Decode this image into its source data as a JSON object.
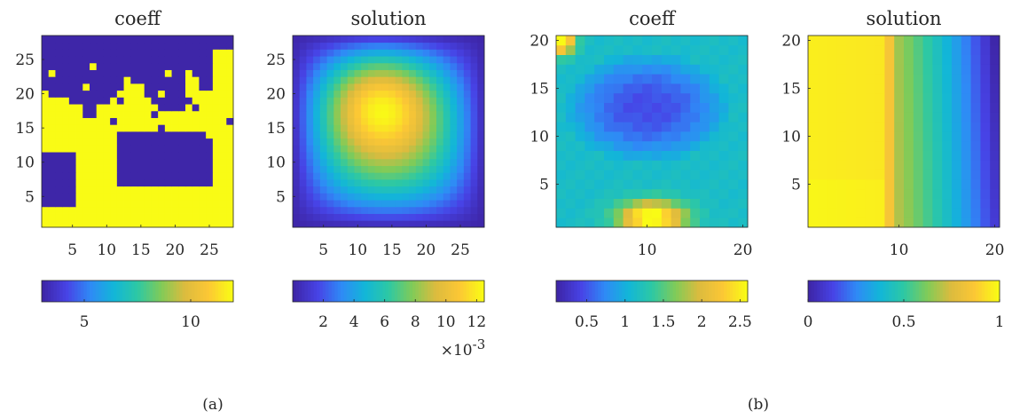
{
  "colormap": "parula",
  "colormap_stops": [
    "#3e26a8",
    "#4743e6",
    "#2f8af6",
    "#12b6d8",
    "#2dc8a4",
    "#80cb58",
    "#dcbb3e",
    "#fcc735",
    "#f9fb15"
  ],
  "chart_data": [
    {
      "type": "heatmap",
      "panel": "a",
      "title": "coeff",
      "grid": [
        28,
        28
      ],
      "xlim": [
        0.5,
        28.5
      ],
      "ylim": [
        0.5,
        28.5
      ],
      "xticks": [
        "5",
        "10",
        "15",
        "20",
        "25"
      ],
      "yticks": [
        "5",
        "10",
        "15",
        "20",
        "25"
      ],
      "values": "binary field, 3 (blue) or 12 (yellow)",
      "value_levels": [
        3,
        12
      ],
      "colorbar": {
        "range": [
          3,
          12
        ],
        "ticks": [
          "5",
          "10"
        ]
      }
    },
    {
      "type": "heatmap",
      "panel": "a",
      "title": "solution",
      "grid": [
        28,
        28
      ],
      "xlim": [
        0.5,
        28.5
      ],
      "ylim": [
        0.5,
        28.5
      ],
      "xticks": [
        "5",
        "10",
        "15",
        "20",
        "25"
      ],
      "yticks": [
        "5",
        "10",
        "15",
        "20",
        "25"
      ],
      "max_value": 0.0125,
      "peak_location": [
        13,
        19
      ],
      "colorbar": {
        "range": [
          0,
          12.5
        ],
        "ticks": [
          "2",
          "4",
          "6",
          "8",
          "10",
          "12"
        ],
        "multiplier": "×10",
        "multiplier_exp": "-3"
      }
    },
    {
      "type": "heatmap",
      "panel": "b",
      "title": "coeff",
      "grid": [
        20,
        20
      ],
      "xlim": [
        0.5,
        20.5
      ],
      "ylim": [
        0.5,
        20.5
      ],
      "xticks": [
        "10",
        "20"
      ],
      "yticks": [
        "5",
        "10",
        "15",
        "20"
      ],
      "min_value": 0.1,
      "max_value": 2.6,
      "colorbar": {
        "range": [
          0.1,
          2.6
        ],
        "ticks": [
          "0.5",
          "1",
          "1.5",
          "2",
          "2.5"
        ]
      }
    },
    {
      "type": "heatmap",
      "panel": "b",
      "title": "solution",
      "grid": [
        20,
        20
      ],
      "xlim": [
        0.5,
        20.5
      ],
      "ylim": [
        0.5,
        20.5
      ],
      "xticks": [
        "10",
        "20"
      ],
      "yticks": [
        "5",
        "10",
        "15",
        "20"
      ],
      "min_value": 0,
      "max_value": 1,
      "colorbar": {
        "range": [
          0,
          1
        ],
        "ticks": [
          "0",
          "0.5",
          "1"
        ]
      }
    }
  ],
  "labels": {
    "a": "(a)",
    "b": "(b)"
  }
}
